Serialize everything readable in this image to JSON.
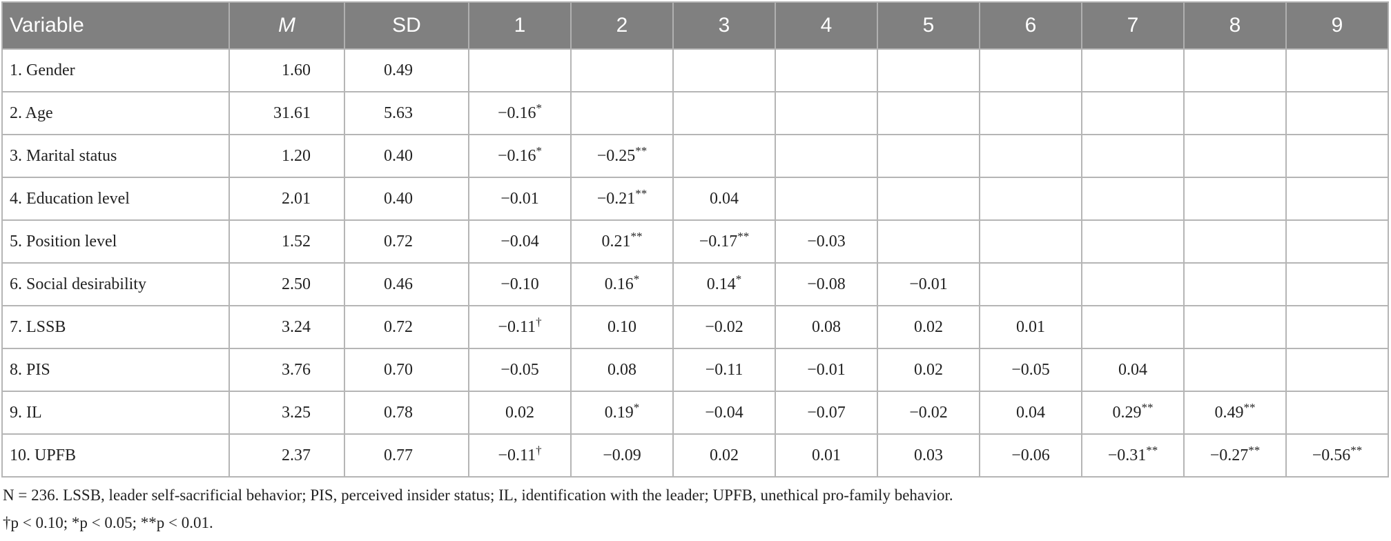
{
  "table": {
    "header": [
      "Variable",
      "M",
      "SD",
      "1",
      "2",
      "3",
      "4",
      "5",
      "6",
      "7",
      "8",
      "9"
    ],
    "rows": [
      [
        "1. Gender",
        "1.60",
        "0.49",
        null,
        null,
        null,
        null,
        null,
        null,
        null,
        null,
        null
      ],
      [
        "2. Age",
        "31.61",
        "5.63",
        {
          "text": "−0.16",
          "sig": "*"
        },
        null,
        null,
        null,
        null,
        null,
        null,
        null,
        null
      ],
      [
        "3. Marital status",
        "1.20",
        "0.40",
        {
          "text": "−0.16",
          "sig": "*"
        },
        {
          "text": "−0.25",
          "sig": "**"
        },
        null,
        null,
        null,
        null,
        null,
        null,
        null
      ],
      [
        "4. Education level",
        "2.01",
        "0.40",
        "−0.01",
        {
          "text": "−0.21",
          "sig": "**"
        },
        "0.04",
        null,
        null,
        null,
        null,
        null,
        null
      ],
      [
        "5. Position level",
        "1.52",
        "0.72",
        "−0.04",
        {
          "text": "0.21",
          "sig": "**"
        },
        {
          "text": "−0.17",
          "sig": "**"
        },
        "−0.03",
        null,
        null,
        null,
        null,
        null
      ],
      [
        "6. Social desirability",
        "2.50",
        "0.46",
        "−0.10",
        {
          "text": "0.16",
          "sig": "*"
        },
        {
          "text": "0.14",
          "sig": "*"
        },
        "−0.08",
        "−0.01",
        null,
        null,
        null,
        null
      ],
      [
        "7. LSSB",
        "3.24",
        "0.72",
        {
          "text": "−0.11",
          "sig": "†"
        },
        "0.10",
        "−0.02",
        "0.08",
        "0.02",
        "0.01",
        null,
        null,
        null
      ],
      [
        "8. PIS",
        "3.76",
        "0.70",
        "−0.05",
        "0.08",
        "−0.11",
        "−0.01",
        "0.02",
        "−0.05",
        "0.04",
        null,
        null
      ],
      [
        "9. IL",
        "3.25",
        "0.78",
        "0.02",
        {
          "text": "0.19",
          "sig": "*"
        },
        "−0.04",
        "−0.07",
        "−0.02",
        "0.04",
        {
          "text": "0.29",
          "sig": "**"
        },
        {
          "text": "0.49",
          "sig": "**"
        },
        null
      ],
      [
        "10. UPFB",
        "2.37",
        "0.77",
        {
          "text": "−0.11",
          "sig": "†"
        },
        "−0.09",
        "0.02",
        "0.01",
        "0.03",
        "−0.06",
        {
          "text": "−0.31",
          "sig": "**"
        },
        {
          "text": "−0.27",
          "sig": "**"
        },
        {
          "text": "−0.56",
          "sig": "**"
        }
      ]
    ]
  },
  "footnotes": [
    "N = 236. LSSB, leader self-sacrificial behavior; PIS, perceived insider status; IL, identification with the leader; UPFB, unethical pro-family behavior.",
    "†p < 0.10; *p < 0.05; **p < 0.01."
  ]
}
